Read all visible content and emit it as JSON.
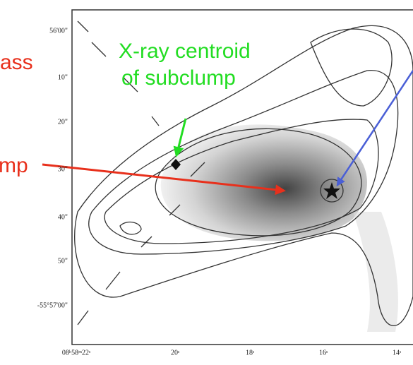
{
  "annotations": {
    "left_top": "ass",
    "left_middle": "mp",
    "centroid_line1": "X-ray centroid",
    "centroid_line2": "of subclump"
  },
  "axes": {
    "y_ticks": [
      "56'00\"",
      "10\"",
      "20\"",
      "30\"",
      "40\"",
      "50\"",
      "-55°57'00\""
    ],
    "x_ticks": [
      "08ʰ58ᵐ22ˢ",
      "20ˢ",
      "18ˢ",
      "16ˢ",
      "14ˢ"
    ]
  }
}
